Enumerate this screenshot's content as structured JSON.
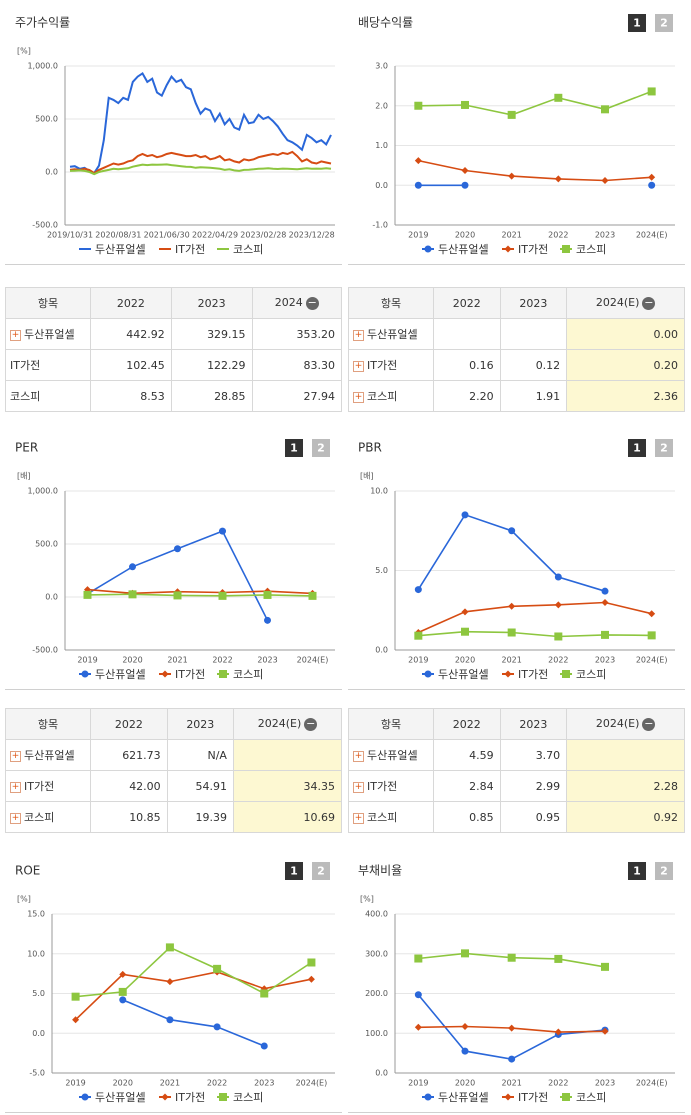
{
  "chart_data": [
    {
      "type": "line",
      "title": "주가수익률",
      "unit": "[%]",
      "markers": false,
      "grid": true,
      "categories": [
        "2019/10/31",
        null,
        null,
        null,
        null,
        null,
        null,
        null,
        null,
        null,
        "2020/08/31",
        null,
        null,
        null,
        null,
        null,
        null,
        null,
        null,
        null,
        "2021/06/30",
        null,
        null,
        null,
        null,
        null,
        null,
        null,
        null,
        null,
        "2022/04/29",
        null,
        null,
        null,
        null,
        null,
        null,
        null,
        null,
        null,
        "2023/02/28",
        null,
        null,
        null,
        null,
        null,
        null,
        null,
        null,
        null,
        "2023/12/28",
        null,
        null,
        null,
        null
      ],
      "ylim": [
        -500,
        1000
      ],
      "yticks": [
        {
          "value": -500,
          "label": "-500.0"
        },
        {
          "value": 0,
          "label": "0.0"
        },
        {
          "value": 500,
          "label": "500.0"
        },
        {
          "value": 1000,
          "label": "1,000.0"
        }
      ],
      "series": [
        {
          "name": "두산퓨얼셀",
          "color": "#2a67d9",
          "values": [
            50,
            55,
            30,
            40,
            10,
            -10,
            60,
            300,
            700,
            680,
            650,
            700,
            680,
            850,
            900,
            930,
            850,
            880,
            750,
            720,
            820,
            900,
            850,
            870,
            800,
            780,
            650,
            550,
            600,
            580,
            480,
            550,
            450,
            500,
            420,
            400,
            540,
            460,
            470,
            540,
            500,
            520,
            480,
            430,
            360,
            300,
            280,
            250,
            210,
            350,
            320,
            280,
            300,
            260,
            350
          ]
        },
        {
          "name": "IT가전",
          "color": "#d64c13",
          "values": [
            20,
            25,
            20,
            30,
            20,
            -10,
            20,
            40,
            60,
            80,
            70,
            80,
            100,
            110,
            150,
            170,
            150,
            160,
            140,
            150,
            170,
            180,
            170,
            160,
            150,
            150,
            160,
            140,
            150,
            120,
            130,
            150,
            110,
            120,
            100,
            90,
            120,
            110,
            120,
            140,
            150,
            160,
            170,
            160,
            180,
            170,
            190,
            150,
            100,
            120,
            90,
            80,
            100,
            90,
            80
          ]
        },
        {
          "name": "코스피",
          "color": "#8dc63f",
          "values": [
            10,
            12,
            15,
            10,
            0,
            -20,
            0,
            10,
            20,
            30,
            25,
            30,
            35,
            50,
            60,
            70,
            65,
            70,
            68,
            70,
            72,
            65,
            60,
            55,
            50,
            48,
            40,
            45,
            42,
            40,
            35,
            30,
            20,
            25,
            15,
            10,
            20,
            22,
            25,
            30,
            32,
            35,
            30,
            28,
            32,
            30,
            28,
            25,
            30,
            35,
            30,
            32,
            30,
            35,
            30
          ]
        }
      ]
    },
    {
      "type": "line",
      "title": "배당수익률",
      "unit": null,
      "markers": true,
      "grid": true,
      "buttons": [
        "1",
        "2"
      ],
      "categories": [
        "2019",
        "2020",
        "2021",
        "2022",
        "2023",
        "2024(E)"
      ],
      "ylim": [
        -1,
        3
      ],
      "yticks": [
        {
          "value": -1,
          "label": "-1.0"
        },
        {
          "value": 0,
          "label": "0.0"
        },
        {
          "value": 1,
          "label": "1.0"
        },
        {
          "value": 2,
          "label": "2.0"
        },
        {
          "value": 3,
          "label": "3.0"
        }
      ],
      "series": [
        {
          "name": "두산퓨얼셀",
          "color": "#2a67d9",
          "values": [
            0,
            0,
            null,
            null,
            null,
            0
          ]
        },
        {
          "name": "IT가전",
          "color": "#d64c13",
          "values": [
            0.62,
            0.37,
            0.23,
            0.16,
            0.12,
            0.2
          ]
        },
        {
          "name": "코스피",
          "color": "#8dc63f",
          "values": [
            2.0,
            2.02,
            1.77,
            2.2,
            1.91,
            2.36
          ]
        }
      ]
    },
    {
      "type": "line",
      "title": "PER",
      "unit": "[배]",
      "markers": true,
      "grid": true,
      "buttons": [
        "1",
        "2"
      ],
      "categories": [
        "2019",
        "2020",
        "2021",
        "2022",
        "2023",
        "2024(E)"
      ],
      "ylim": [
        -500,
        1000
      ],
      "yticks": [
        {
          "value": -500,
          "label": "-500.0"
        },
        {
          "value": 0,
          "label": "0.0"
        },
        {
          "value": 500,
          "label": "500.0"
        },
        {
          "value": 1000,
          "label": "1,000.0"
        }
      ],
      "series": [
        {
          "name": "두산퓨얼셀",
          "color": "#2a67d9",
          "values": [
            30,
            285,
            455,
            621.73,
            -220,
            null
          ]
        },
        {
          "name": "IT가전",
          "color": "#d64c13",
          "values": [
            70,
            35,
            50,
            42,
            54.91,
            34.35
          ]
        },
        {
          "name": "코스피",
          "color": "#8dc63f",
          "values": [
            20,
            25,
            15,
            10.85,
            19.39,
            10.69
          ]
        }
      ]
    },
    {
      "type": "line",
      "title": "PBR",
      "unit": "[배]",
      "markers": true,
      "grid": true,
      "buttons": [
        "1",
        "2"
      ],
      "categories": [
        "2019",
        "2020",
        "2021",
        "2022",
        "2023",
        "2024(E)"
      ],
      "ylim": [
        0,
        10
      ],
      "yticks": [
        {
          "value": 0,
          "label": "0.0"
        },
        {
          "value": 5,
          "label": "5.0"
        },
        {
          "value": 10,
          "label": "10.0"
        }
      ],
      "series": [
        {
          "name": "두산퓨얼셀",
          "color": "#2a67d9",
          "values": [
            3.8,
            8.5,
            7.5,
            4.59,
            3.7,
            null
          ]
        },
        {
          "name": "IT가전",
          "color": "#d64c13",
          "values": [
            1.1,
            2.4,
            2.75,
            2.84,
            2.99,
            2.28
          ]
        },
        {
          "name": "코스피",
          "color": "#8dc63f",
          "values": [
            0.9,
            1.15,
            1.1,
            0.85,
            0.95,
            0.92
          ]
        }
      ]
    },
    {
      "type": "line",
      "title": "ROE",
      "unit": "[%]",
      "markers": true,
      "grid": true,
      "buttons": [
        "1",
        "2"
      ],
      "categories": [
        "2019",
        "2020",
        "2021",
        "2022",
        "2023",
        "2024(E)"
      ],
      "ylim": [
        -5,
        15
      ],
      "yticks": [
        {
          "value": -5,
          "label": "-5.0"
        },
        {
          "value": 0,
          "label": "0.0"
        },
        {
          "value": 5,
          "label": "5.0"
        },
        {
          "value": 10,
          "label": "10.0"
        },
        {
          "value": 15,
          "label": "15.0"
        }
      ],
      "series": [
        {
          "name": "두산퓨얼셀",
          "color": "#2a67d9",
          "values": [
            null,
            4.2,
            1.7,
            0.8,
            -1.6,
            null
          ]
        },
        {
          "name": "IT가전",
          "color": "#d64c13",
          "values": [
            1.7,
            7.4,
            6.5,
            7.7,
            5.6,
            6.8
          ]
        },
        {
          "name": "코스피",
          "color": "#8dc63f",
          "values": [
            4.6,
            5.2,
            10.8,
            8.1,
            5.0,
            8.9
          ]
        }
      ]
    },
    {
      "type": "line",
      "title": "부채비율",
      "unit": "[%]",
      "markers": true,
      "grid": true,
      "buttons": [
        "1",
        "2"
      ],
      "categories": [
        "2019",
        "2020",
        "2021",
        "2022",
        "2023",
        "2024(E)"
      ],
      "ylim": [
        0,
        400
      ],
      "yticks": [
        {
          "value": 0,
          "label": "0.0"
        },
        {
          "value": 100,
          "label": "100.0"
        },
        {
          "value": 200,
          "label": "200.0"
        },
        {
          "value": 300,
          "label": "300.0"
        },
        {
          "value": 400,
          "label": "400.0"
        }
      ],
      "series": [
        {
          "name": "두산퓨얼셀",
          "color": "#2a67d9",
          "values": [
            197,
            55,
            35,
            97,
            108,
            null
          ]
        },
        {
          "name": "IT가전",
          "color": "#d64c13",
          "values": [
            115,
            117,
            113,
            103,
            105,
            null
          ]
        },
        {
          "name": "코스피",
          "color": "#8dc63f",
          "values": [
            288,
            301,
            290,
            287,
            267,
            null
          ]
        }
      ]
    }
  ],
  "tables": [
    {
      "headers": [
        "항목",
        "2022",
        "2023",
        "2024"
      ],
      "rows": [
        {
          "name": "두산퓨얼셀",
          "cells": [
            "442.92",
            "329.15",
            "353.20"
          ]
        },
        {
          "name": "IT가전",
          "cells": [
            "102.45",
            "122.29",
            "83.30"
          ]
        },
        {
          "name": "코스피",
          "cells": [
            "8.53",
            "28.85",
            "27.94"
          ]
        }
      ]
    },
    {
      "headers": [
        "항목",
        "2022",
        "2023",
        "2024(E)"
      ],
      "rows": [
        {
          "name": "두산퓨얼셀",
          "cells": [
            null,
            null,
            "0.00"
          ]
        },
        {
          "name": "IT가전",
          "cells": [
            "0.16",
            "0.12",
            "0.20"
          ]
        },
        {
          "name": "코스피",
          "cells": [
            "2.20",
            "1.91",
            "2.36"
          ]
        }
      ]
    },
    {
      "headers": [
        "항목",
        "2022",
        "2023",
        "2024(E)"
      ],
      "rows": [
        {
          "name": "두산퓨얼셀",
          "cells": [
            "621.73",
            "N/A",
            null
          ]
        },
        {
          "name": "IT가전",
          "cells": [
            "42.00",
            "54.91",
            "34.35"
          ]
        },
        {
          "name": "코스피",
          "cells": [
            "10.85",
            "19.39",
            "10.69"
          ]
        }
      ]
    },
    {
      "headers": [
        "항목",
        "2022",
        "2023",
        "2024(E)"
      ],
      "rows": [
        {
          "name": "두산퓨얼셀",
          "cells": [
            "4.59",
            "3.70",
            null
          ]
        },
        {
          "name": "IT가전",
          "cells": [
            "2.84",
            "2.99",
            "2.28"
          ]
        },
        {
          "name": "코스피",
          "cells": [
            "0.85",
            "0.95",
            "0.92"
          ]
        }
      ]
    }
  ]
}
